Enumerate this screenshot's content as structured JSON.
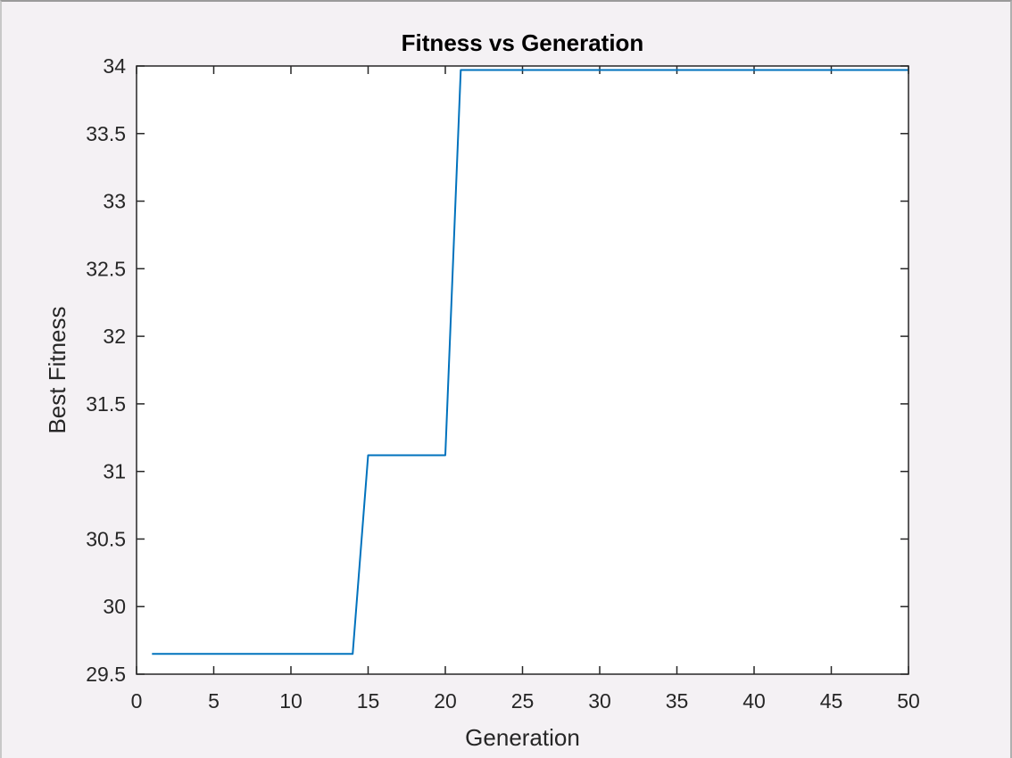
{
  "chart_data": {
    "type": "line",
    "title": "Fitness vs Generation",
    "xlabel": "Generation",
    "ylabel": "Best Fitness",
    "xlim": [
      0,
      50
    ],
    "ylim": [
      29.5,
      34
    ],
    "xticks": [
      0,
      5,
      10,
      15,
      20,
      25,
      30,
      35,
      40,
      45,
      50
    ],
    "yticks": [
      29.5,
      30,
      30.5,
      31,
      31.5,
      32,
      32.5,
      33,
      33.5,
      34
    ],
    "xtick_labels": [
      "0",
      "5",
      "10",
      "15",
      "20",
      "25",
      "30",
      "35",
      "40",
      "45",
      "50"
    ],
    "ytick_labels": [
      "29.5",
      "30",
      "30.5",
      "31",
      "31.5",
      "32",
      "32.5",
      "33",
      "33.5",
      "34"
    ],
    "grid": false,
    "series": [
      {
        "color": "#0072bd",
        "x": [
          1,
          2,
          3,
          4,
          5,
          6,
          7,
          8,
          9,
          10,
          11,
          12,
          13,
          14,
          15,
          16,
          17,
          18,
          19,
          20,
          21,
          22,
          23,
          24,
          25,
          26,
          27,
          28,
          29,
          30,
          31,
          32,
          33,
          34,
          35,
          36,
          37,
          38,
          39,
          40,
          41,
          42,
          43,
          44,
          45,
          46,
          47,
          48,
          49,
          50
        ],
        "y": [
          29.65,
          29.65,
          29.65,
          29.65,
          29.65,
          29.65,
          29.65,
          29.65,
          29.65,
          29.65,
          29.65,
          29.65,
          29.65,
          29.65,
          31.12,
          31.12,
          31.12,
          31.12,
          31.12,
          31.12,
          33.97,
          33.97,
          33.97,
          33.97,
          33.97,
          33.97,
          33.97,
          33.97,
          33.97,
          33.97,
          33.97,
          33.97,
          33.97,
          33.97,
          33.97,
          33.97,
          33.97,
          33.97,
          33.97,
          33.97,
          33.97,
          33.97,
          33.97,
          33.97,
          33.97,
          33.97,
          33.97,
          33.97,
          33.97,
          33.97
        ]
      }
    ]
  }
}
